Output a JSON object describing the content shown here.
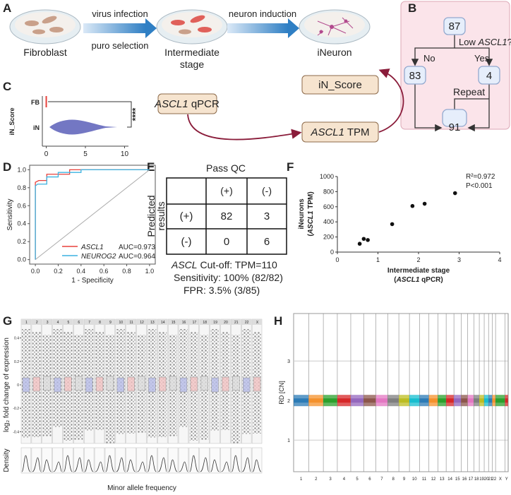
{
  "panel_labels": [
    "A",
    "B",
    "C",
    "D",
    "E",
    "F",
    "G",
    "H"
  ],
  "panel_a": {
    "arrow_1_top": "virus infection",
    "arrow_1_bottom": "puro selection",
    "arrow_2_top": "neuron induction",
    "stage_1": "Fibroblast",
    "stage_2": [
      "Intermediate",
      "stage"
    ],
    "stage_3": "iNeuron"
  },
  "panel_b": {
    "nodes": [
      "87",
      "83",
      "4",
      "91"
    ],
    "question": [
      "Low ",
      "ASCL1",
      "?"
    ],
    "no": "No",
    "yes": "Yes",
    "repeat": "Repeat"
  },
  "workflow": {
    "score": "iN_Score",
    "qpcr": [
      "ASCL1",
      " qPCR"
    ],
    "tpm": [
      "ASCL1",
      " TPM"
    ]
  },
  "panel_e": {
    "header": "Pass QC",
    "columns": [
      "(+)",
      "(-)"
    ],
    "row_title": [
      "Predicted",
      "results"
    ],
    "rows": [
      [
        "(+)",
        82,
        3
      ],
      [
        "(-)",
        0,
        6
      ]
    ],
    "cutoff": [
      "ASCL",
      " Cut-off: TPM=110"
    ],
    "sensitivity": "Sensitivity: 100% (82/82)",
    "fpr": "FPR: 3.5% (3/85)"
  },
  "chart_data": [
    {
      "type": "violin",
      "ylabel": "iN_Score",
      "categories": [
        "FB",
        "iN"
      ],
      "xlim": [
        -0.5,
        10.5
      ],
      "xticks": [
        0,
        5,
        10
      ],
      "significance": "****"
    },
    {
      "type": "line",
      "xlabel": "1 - Specificity",
      "ylabel": "Sensitivity",
      "xlim": [
        -0.05,
        1.05
      ],
      "ylim": [
        -0.05,
        1.05
      ],
      "xticks": [
        {
          "value": 0,
          "label": "0.0"
        },
        0.2,
        0.4,
        0.6,
        0.8,
        {
          "value": 1,
          "label": "1.0"
        }
      ],
      "yticks": [
        {
          "value": 0,
          "label": "0.0"
        },
        0.2,
        0.4,
        0.6,
        0.8,
        {
          "value": 1,
          "label": "1.0"
        }
      ],
      "series": [
        {
          "name": "ASCL1",
          "auc": "AUC=0.973",
          "color": "#e8413c",
          "x": [
            0,
            0,
            0.03,
            0.1,
            0.1,
            0.3,
            0.3,
            1
          ],
          "values": [
            0,
            0.86,
            0.88,
            0.88,
            0.95,
            0.95,
            1,
            1
          ]
        },
        {
          "name": "NEUROG2",
          "auc": "AUC=0.964",
          "color": "#3bb2e0",
          "x": [
            0,
            0,
            0.02,
            0.1,
            0.1,
            0.2,
            0.2,
            0.4,
            0.4,
            1
          ],
          "values": [
            0,
            0.82,
            0.84,
            0.84,
            0.92,
            0.92,
            0.97,
            0.97,
            1,
            1
          ]
        }
      ]
    },
    {
      "type": "scatter",
      "xlabel": "Intermediate stage",
      "xlabel_2": [
        "(",
        "ASCL1",
        " qPCR)"
      ],
      "ylabel": "iNeurons",
      "ylabel_2": [
        "(",
        "ASCL1",
        " TPM)"
      ],
      "annotations": [
        "R²=0.972",
        "P<0.001"
      ],
      "xlim": [
        0,
        4
      ],
      "ylim": [
        0,
        1000
      ],
      "xticks": [
        0,
        1,
        2,
        3,
        4
      ],
      "yticks": [
        0,
        200,
        400,
        600,
        800,
        1000
      ],
      "color": "#111",
      "x": [
        0.55,
        0.65,
        0.75,
        1.35,
        1.85,
        2.15,
        2.9
      ],
      "values": [
        110,
        175,
        160,
        370,
        610,
        640,
        780
      ]
    },
    {
      "type": "mosaic",
      "ylabel": "log₂ fold change of expression",
      "ylabel_2": "Density",
      "xlabel": "Minor allele frequency",
      "ylim": [
        -0.5,
        0.5
      ],
      "yticks": [
        -0.4,
        -0.2,
        0,
        0.2,
        0.4
      ],
      "categories": [
        "1",
        "2",
        "3",
        "4",
        "5",
        "6",
        "7",
        "8",
        "9",
        "10",
        "11",
        "12",
        "13",
        "14",
        "15",
        "16",
        "17",
        "18",
        "19",
        "20",
        "21",
        "22",
        "X"
      ]
    },
    {
      "type": "cnv",
      "ylabel": "RD [CN]",
      "ylim": [
        0.2,
        4.2
      ],
      "yticks": [
        1,
        2,
        3
      ],
      "categories": [
        "1",
        "2",
        "3",
        "4",
        "5",
        "6",
        "7",
        "8",
        "9",
        "10",
        "11",
        "12",
        "13",
        "14",
        "15",
        "16",
        "17",
        "18",
        "19",
        "20",
        "21",
        "22",
        "X",
        "Y"
      ]
    }
  ]
}
